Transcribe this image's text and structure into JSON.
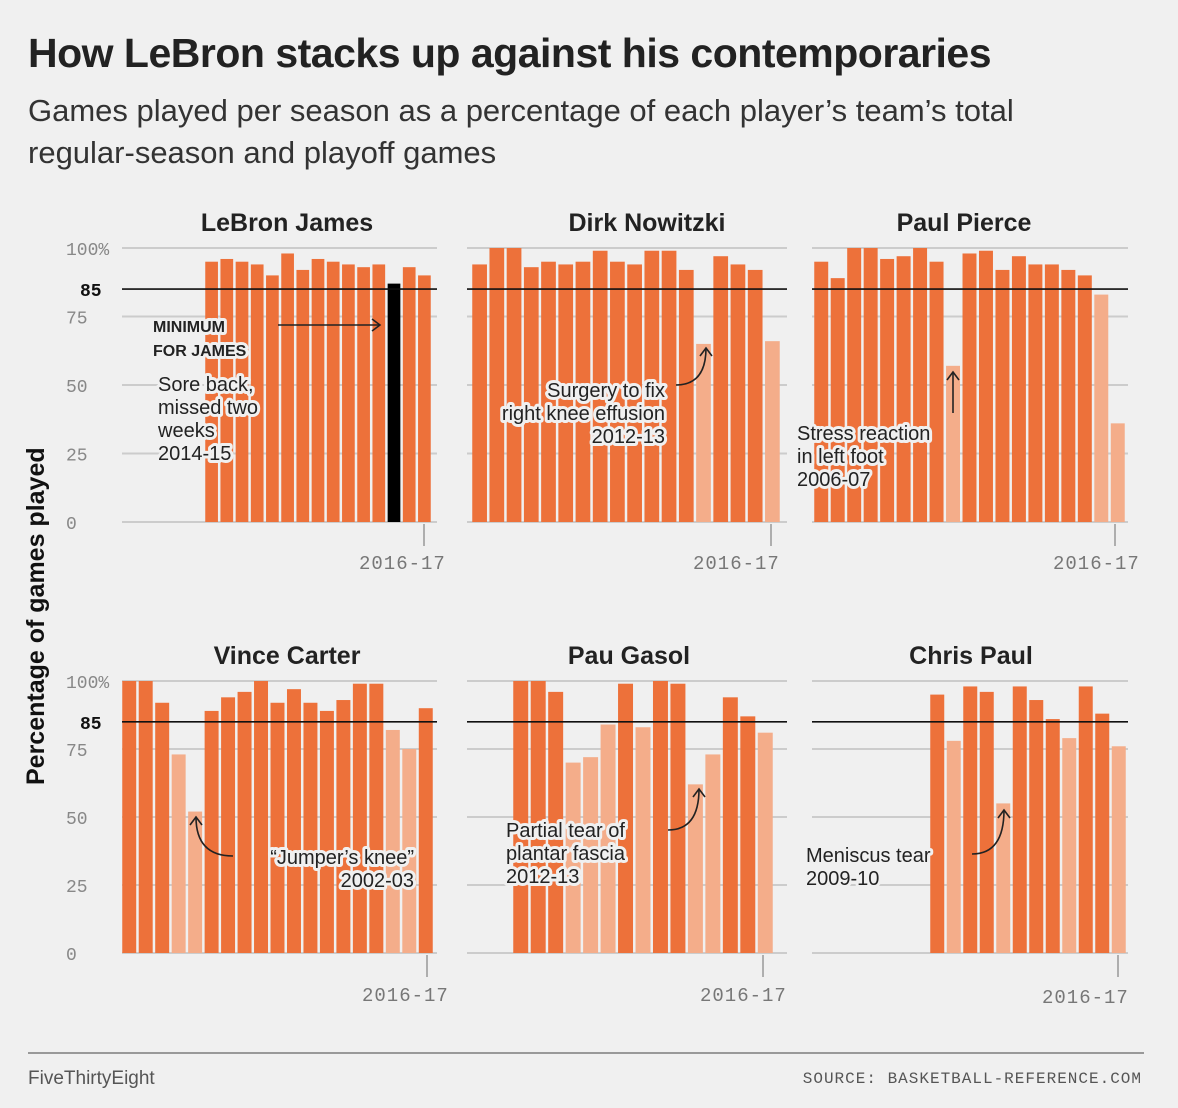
{
  "title": "How LeBron stacks up against his contemporaries",
  "subtitle": "Games played per season as a percentage of each player’s team’s total regular-season and playoff games",
  "footer": {
    "brand": "FiveThirtyEight",
    "source": "SOURCE: BASKETBALL-REFERENCE.COM"
  },
  "colors": {
    "bar": "#ed713a",
    "bar_light": "#f4ad8a",
    "highlight": "#000000",
    "grid": "#cccccc",
    "threshold": "#111111",
    "background": "#f0f0f0"
  },
  "chart_data": {
    "type": "bar",
    "ylabel": "Percentage of games played",
    "ylim": [
      0,
      100
    ],
    "y_ticks": [
      0,
      25,
      50,
      75,
      100
    ],
    "y_tick_labels": [
      "0",
      "25",
      "50",
      "75",
      "100%"
    ],
    "threshold": 85,
    "threshold_label": "85",
    "seasons_axis_label": "2016-17",
    "panels": [
      {
        "player": "LeBron James",
        "values": [
          95,
          96,
          95,
          94,
          90,
          98,
          92,
          96,
          95,
          94,
          93,
          94,
          87,
          93,
          90
        ],
        "light_indices": [],
        "highlight_index": 12,
        "annotations": [
          {
            "lines": [
              "MINIMUM",
              "FOR JAMES"
            ],
            "bold": true
          },
          {
            "lines": [
              "Sore back,",
              "missed two",
              "weeks",
              "2014-15"
            ]
          }
        ]
      },
      {
        "player": "Dirk Nowitzki",
        "values": [
          94,
          100,
          100,
          93,
          95,
          94,
          95,
          99,
          95,
          94,
          99,
          99,
          92,
          65,
          97,
          94,
          92,
          66
        ],
        "light_indices": [
          13,
          17
        ],
        "annotations": [
          {
            "lines": [
              "Surgery to fix",
              "right knee effusion",
              "2012-13"
            ]
          }
        ]
      },
      {
        "player": "Paul Pierce",
        "values": [
          95,
          89,
          100,
          100,
          96,
          97,
          100,
          95,
          57,
          98,
          99,
          92,
          97,
          94,
          94,
          92,
          90,
          83,
          36
        ],
        "light_indices": [
          8,
          17,
          18
        ],
        "annotations": [
          {
            "lines": [
              "Stress reaction",
              "in left foot",
              "2006-07"
            ]
          }
        ]
      },
      {
        "player": "Vince Carter",
        "values": [
          100,
          100,
          92,
          73,
          52,
          89,
          94,
          96,
          100,
          92,
          97,
          92,
          89,
          93,
          99,
          99,
          82,
          75,
          90
        ],
        "light_indices": [
          3,
          4,
          16,
          17
        ],
        "annotations": [
          {
            "lines": [
              "“Jumper’s knee”",
              "2002-03"
            ]
          }
        ]
      },
      {
        "player": "Pau Gasol",
        "values": [
          100,
          100,
          96,
          70,
          72,
          84,
          99,
          83,
          100,
          99,
          62,
          73,
          94,
          87,
          81
        ],
        "light_indices": [
          3,
          4,
          5,
          7,
          10,
          11,
          14
        ],
        "annotations": [
          {
            "lines": [
              "Partial tear of",
              "plantar fascia",
              "2012-13"
            ]
          }
        ]
      },
      {
        "player": "Chris Paul",
        "values": [
          95,
          78,
          98,
          96,
          55,
          98,
          93,
          86,
          79,
          98,
          88,
          76
        ],
        "light_indices": [
          1,
          4,
          8,
          11
        ],
        "annotations": [
          {
            "lines": [
              "Meniscus tear",
              "2009-10"
            ]
          }
        ]
      }
    ]
  }
}
